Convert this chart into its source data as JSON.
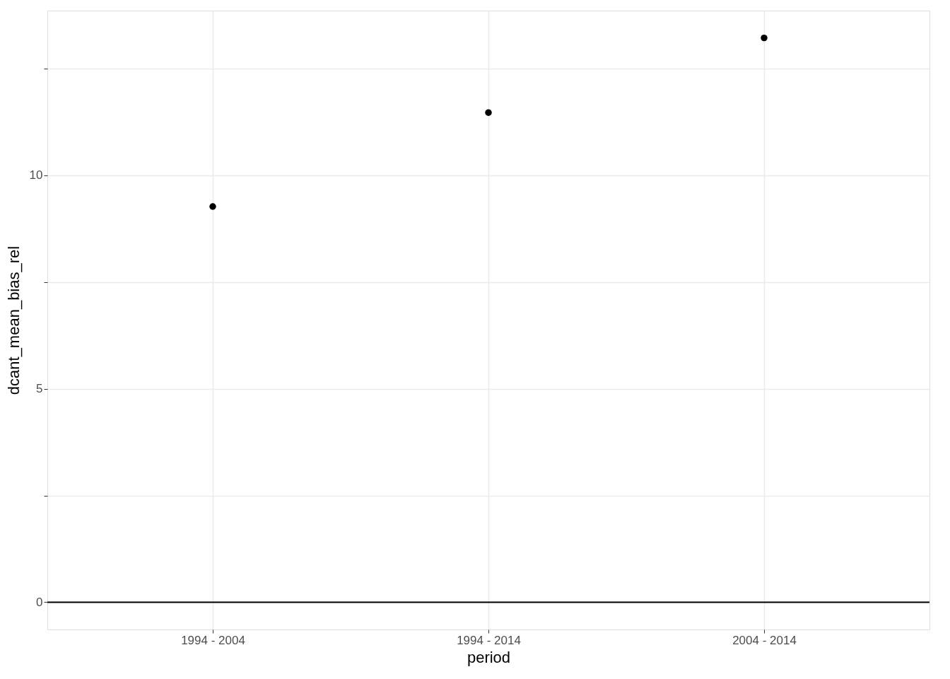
{
  "chart_data": {
    "type": "scatter",
    "xlabel": "period",
    "ylabel": "dcant_mean_bias_rel",
    "categories": [
      "1994 - 2004",
      "1994 - 2014",
      "2004 - 2014"
    ],
    "series": [
      {
        "color": "#000000",
        "values": [
          9.27,
          11.47,
          13.22
        ]
      }
    ],
    "ylim": [
      -0.64,
      13.86
    ],
    "yticks": [
      0,
      {
        "value": 2.5,
        "label": null
      },
      5,
      {
        "value": 7.5,
        "label": null
      },
      10,
      {
        "value": 12.5,
        "label": null
      }
    ],
    "ref_lines": [
      {
        "axis": "y",
        "value": 0,
        "color": "#000000"
      }
    ],
    "grid": true,
    "marker": "circle"
  }
}
